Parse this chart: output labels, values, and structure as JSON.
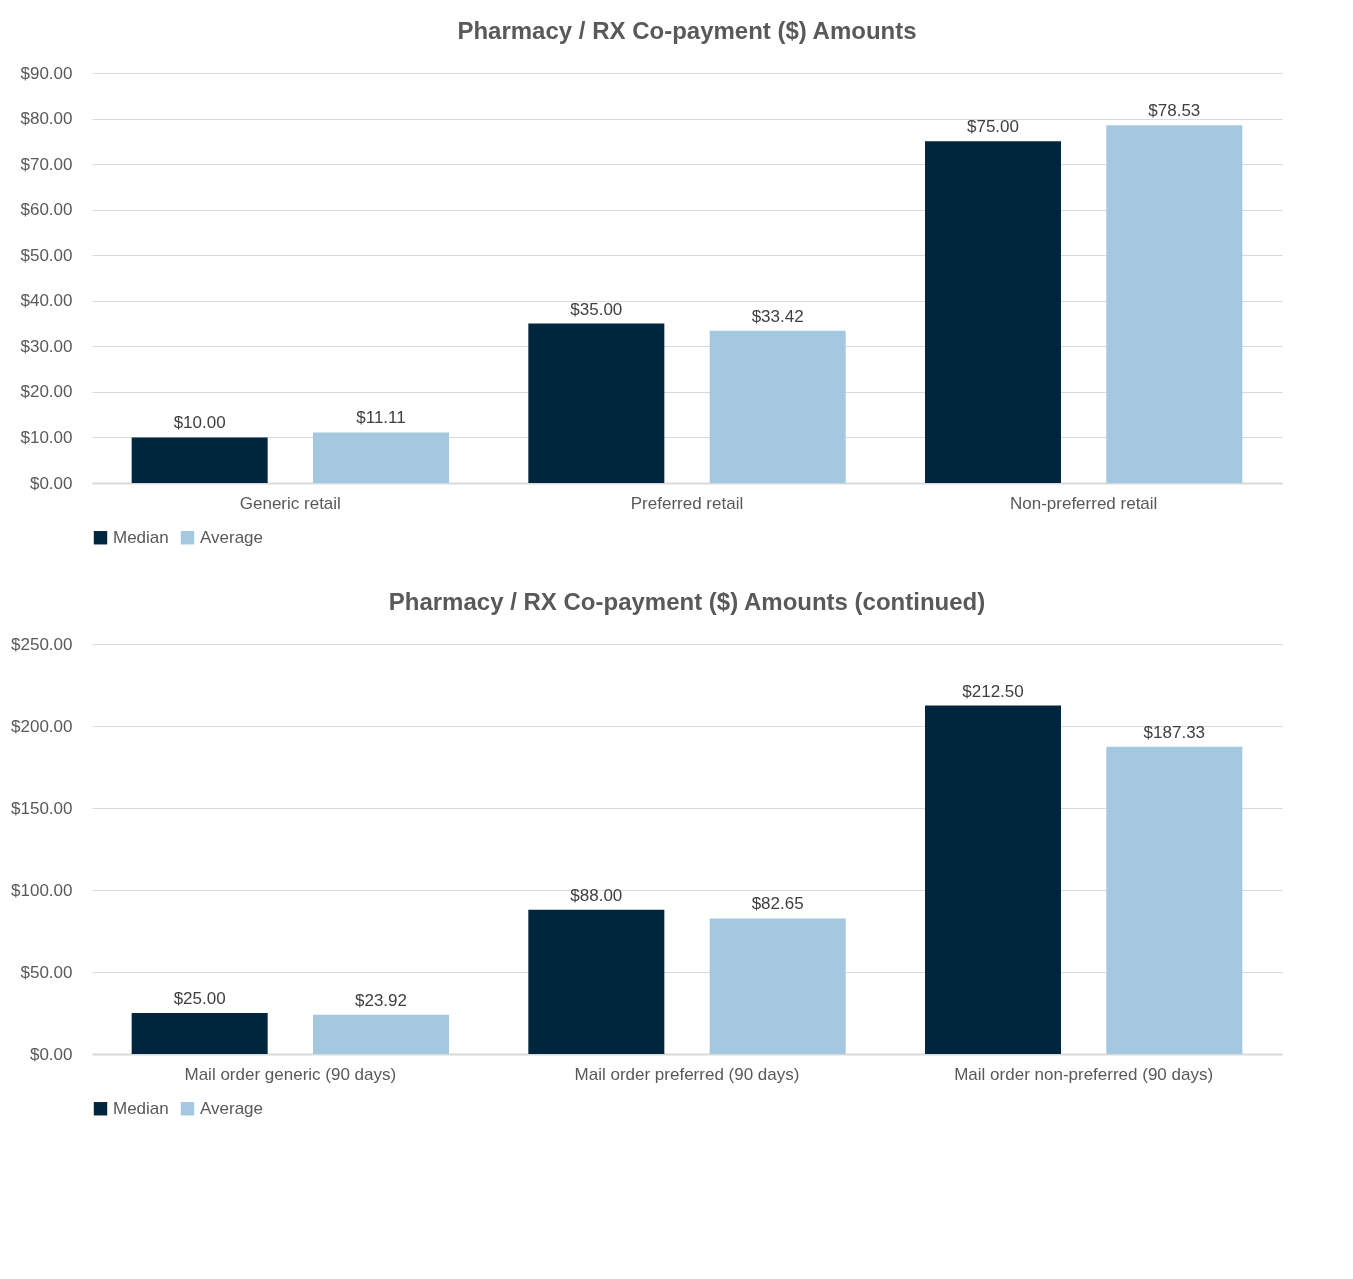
{
  "chart_data": [
    {
      "type": "bar",
      "title": "Pharmacy / RX Co-payment ($) Amounts",
      "categories": [
        "Generic retail",
        "Preferred retail",
        "Non-preferred retail"
      ],
      "series": [
        {
          "name": "Median",
          "color": "#00263e",
          "values": [
            10,
            35,
            75
          ],
          "value_labels": [
            "$10.00",
            "$35.00",
            "$75.00"
          ]
        },
        {
          "name": "Average",
          "color": "#a5c8e1",
          "values": [
            11.11,
            33.42,
            78.53
          ],
          "value_labels": [
            "$11.11",
            "$33.42",
            "$78.53"
          ]
        }
      ],
      "ylim": [
        0,
        90
      ],
      "yticks": [
        {
          "value": 0,
          "label": "$0.00"
        },
        {
          "value": 10,
          "label": "$10.00"
        },
        {
          "value": 20,
          "label": "$20.00"
        },
        {
          "value": 30,
          "label": "$30.00"
        },
        {
          "value": 40,
          "label": "$40.00"
        },
        {
          "value": 50,
          "label": "$50.00"
        },
        {
          "value": 60,
          "label": "$60.00"
        },
        {
          "value": 70,
          "label": "$70.00"
        },
        {
          "value": 80,
          "label": "$80.00"
        },
        {
          "value": 90,
          "label": "$90.00"
        }
      ],
      "grid": "y",
      "legend": "bottom"
    },
    {
      "type": "bar",
      "title": "Pharmacy / RX Co-payment ($) Amounts (continued)",
      "categories": [
        "Mail order generic (90 days)",
        "Mail order preferred (90 days)",
        "Mail order non-preferred (90 days)"
      ],
      "series": [
        {
          "name": "Median",
          "color": "#00263e",
          "values": [
            25,
            88,
            212.5
          ],
          "value_labels": [
            "$25.00",
            "$88.00",
            "$212.50"
          ]
        },
        {
          "name": "Average",
          "color": "#a5c8e1",
          "values": [
            23.92,
            82.65,
            187.33
          ],
          "value_labels": [
            "$23.92",
            "$82.65",
            "$187.33"
          ]
        }
      ],
      "ylim": [
        0,
        250
      ],
      "yticks": [
        {
          "value": 0,
          "label": "$0.00"
        },
        {
          "value": 50,
          "label": "$50.00"
        },
        {
          "value": 100,
          "label": "$100.00"
        },
        {
          "value": 150,
          "label": "$150.00"
        },
        {
          "value": 200,
          "label": "$200.00"
        },
        {
          "value": 250,
          "label": "$250.00"
        }
      ],
      "grid": "y",
      "legend": "bottom"
    }
  ]
}
